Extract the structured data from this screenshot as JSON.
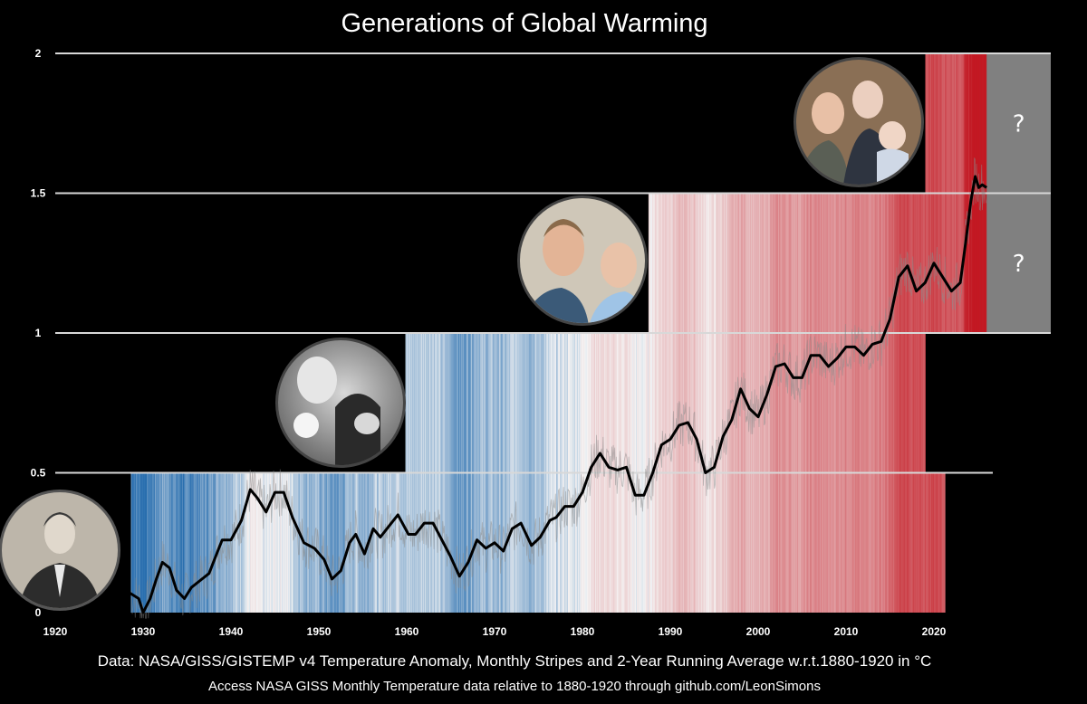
{
  "chart_data": {
    "type": "line",
    "title": "Generations of Global Warming",
    "x_ticks": [
      1920,
      1930,
      1940,
      1950,
      1960,
      1970,
      1980,
      1990,
      2000,
      2010,
      2020
    ],
    "y_ticks": [
      0,
      0.5,
      1,
      1.5,
      2
    ],
    "xlim": [
      1920,
      2026.3
    ],
    "ylim": [
      0,
      2
    ],
    "grid": "horizontal",
    "series": [
      {
        "style": "black line, 2-year running average",
        "x": [
          1928.5,
          1929.5,
          1930.0,
          1930.8,
          1931.5,
          1932.2,
          1933.0,
          1933.8,
          1934.7,
          1935.5,
          1936.3,
          1937.5,
          1938.5,
          1939.0,
          1940.0,
          1941.2,
          1942.2,
          1943.0,
          1944.0,
          1945.0,
          1946.0,
          1947.0,
          1948.3,
          1949.5,
          1950.6,
          1951.5,
          1952.5,
          1953.5,
          1954.2,
          1955.2,
          1956.2,
          1957.0,
          1958.0,
          1959.0,
          1960.2,
          1961.0,
          1962.0,
          1963.0,
          1964.0,
          1965.0,
          1966.0,
          1967.0,
          1968.0,
          1969.0,
          1970.0,
          1971.0,
          1972.0,
          1973.0,
          1974.2,
          1975.2,
          1976.3,
          1977.0,
          1978.0,
          1979.0,
          1980.0,
          1981.0,
          1982.0,
          1983.0,
          1984.0,
          1985.0,
          1986.0,
          1987.0,
          1988.0,
          1989.0,
          1990.0,
          1991.0,
          1992.0,
          1993.0,
          1994.0,
          1995.0,
          1996.0,
          1997.0,
          1998.0,
          1999.0,
          2000.0,
          2001.0,
          2002.0,
          2003.0,
          2004.0,
          2005.0,
          2006.0,
          2007.0,
          2008.0,
          2009.0,
          2010.0,
          2011.0,
          2012.0,
          2013.0,
          2014.0,
          2015.0,
          2016.0,
          2017.0,
          2018.0,
          2019.0,
          2020.0,
          2021.0,
          2022.0,
          2023.0,
          2023.6,
          2024.2,
          2024.7,
          2025.1,
          2025.5,
          2026.0
        ],
        "y": [
          0.07,
          0.05,
          0.0,
          0.05,
          0.12,
          0.18,
          0.16,
          0.08,
          0.05,
          0.09,
          0.11,
          0.14,
          0.22,
          0.26,
          0.26,
          0.33,
          0.44,
          0.41,
          0.36,
          0.43,
          0.43,
          0.34,
          0.25,
          0.23,
          0.19,
          0.12,
          0.15,
          0.25,
          0.28,
          0.21,
          0.3,
          0.27,
          0.31,
          0.35,
          0.28,
          0.28,
          0.32,
          0.32,
          0.26,
          0.2,
          0.13,
          0.18,
          0.26,
          0.23,
          0.25,
          0.22,
          0.3,
          0.32,
          0.24,
          0.27,
          0.33,
          0.34,
          0.38,
          0.38,
          0.43,
          0.52,
          0.57,
          0.52,
          0.51,
          0.52,
          0.42,
          0.42,
          0.5,
          0.6,
          0.62,
          0.67,
          0.68,
          0.62,
          0.5,
          0.52,
          0.63,
          0.69,
          0.8,
          0.73,
          0.7,
          0.78,
          0.88,
          0.89,
          0.84,
          0.84,
          0.92,
          0.92,
          0.88,
          0.91,
          0.95,
          0.95,
          0.92,
          0.96,
          0.97,
          1.05,
          1.2,
          1.24,
          1.15,
          1.18,
          1.25,
          1.2,
          1.15,
          1.18,
          1.32,
          1.47,
          1.56,
          1.52,
          1.53,
          1.52
        ]
      }
    ],
    "annotations": [
      "?",
      "?"
    ]
  },
  "footer": {
    "line1": "Data: NASA/GISS/GISTEMP v4 Temperature Anomaly, Monthly Stripes and 2-Year Running Average w.r.t.1880-1920 in °C",
    "line2": "Access NASA GISS Monthly Temperature data relative to 1880-1920 through github.com/LeonSimons"
  },
  "colors": {
    "background": "#000000",
    "stripe_cold": "#3a86c0",
    "stripe_neutral": "#f2f2f2",
    "stripe_warm": "#c81e26",
    "grid": "#d8d8d8",
    "question_box": "#808080",
    "line": "#000000"
  },
  "photos": [
    "photo-child-portrait",
    "photo-family-bw",
    "photo-two-men-selfie",
    "photo-three-generations"
  ]
}
